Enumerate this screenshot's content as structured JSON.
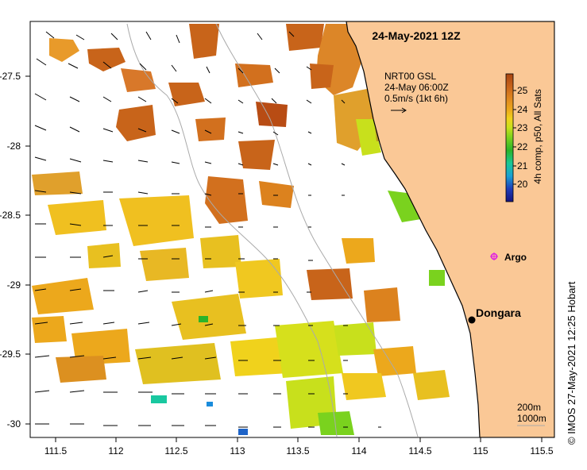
{
  "title": "24-May-2021 12Z",
  "current_legend": {
    "line1": "NRT00 GSL",
    "line2": "24-May 06:00Z",
    "line3": "0.5m/s (1kt 6h)"
  },
  "colorbar": {
    "label": "4h comp, p50, All Sats",
    "ticks": [
      "20",
      "21",
      "22",
      "23",
      "24",
      "25"
    ],
    "colors": [
      "#16147e",
      "#1e3cb8",
      "#1aa0d4",
      "#19c896",
      "#2ab42a",
      "#7ad21e",
      "#c8e01c",
      "#f0d21c",
      "#eca81c",
      "#dc821e",
      "#c8641a",
      "#a84410"
    ]
  },
  "places": {
    "dongara": "Dongara",
    "argo": "Argo"
  },
  "depth_contours": {
    "d200": "200m",
    "d1000": "1000m"
  },
  "axes": {
    "x_ticks": [
      "111.5",
      "112",
      "112.5",
      "113",
      "113.5",
      "114",
      "114.5",
      "115",
      "115.5"
    ],
    "y_ticks": [
      "-27.5",
      "-28",
      "-28.5",
      "-29",
      "-29.5",
      "-30"
    ]
  },
  "credit": "© IMOS 27-May-2021 12:25 Hobart",
  "colors": {
    "land": "#fac896",
    "coast": "#000000",
    "argo": "#e020e0"
  }
}
